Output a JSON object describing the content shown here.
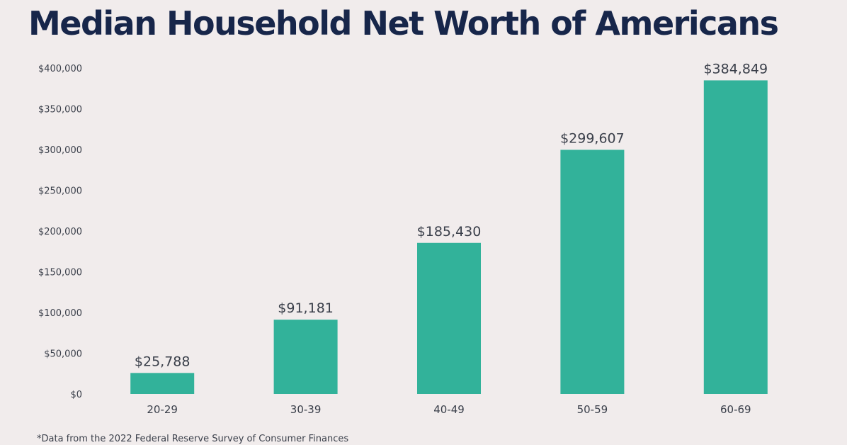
{
  "chart_data": {
    "type": "bar",
    "title": "Median Household Net Worth of Americans",
    "xlabel": "",
    "ylabel": "",
    "categories": [
      "20-29",
      "30-39",
      "40-49",
      "50-59",
      "60-69"
    ],
    "values": [
      25788,
      91181,
      185430,
      299607,
      384849
    ],
    "value_labels": [
      "$25,788",
      "$91,181",
      "$185,430",
      "$299,607",
      "$384,849"
    ],
    "ylim": [
      0,
      400000
    ],
    "y_ticks": [
      0,
      50000,
      100000,
      150000,
      200000,
      250000,
      300000,
      350000,
      400000
    ],
    "y_tick_labels": [
      "$0",
      "$50,000",
      "$100,000",
      "$150,000",
      "$200,000",
      "$250,000",
      "$300,000",
      "$350,000",
      "$400,000"
    ],
    "grid": false,
    "legend": "none",
    "bar_color": "#32b29a",
    "text_color": "#3a3f4a",
    "title_color": "#17264a"
  },
  "footnote": "*Data from the 2022 Federal Reserve Survey of Consumer Finances"
}
